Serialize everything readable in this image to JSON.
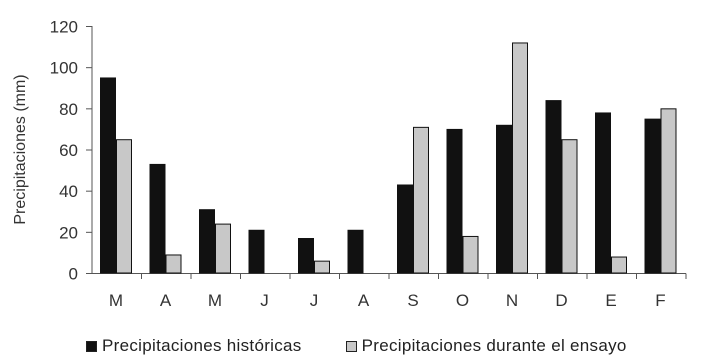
{
  "chart_data": {
    "type": "bar",
    "title": "",
    "xlabel": "",
    "ylabel": "Precipitaciones (mm)",
    "ylim": [
      0,
      120
    ],
    "yticks": [
      "0",
      "20",
      "40",
      "60",
      "80",
      "100",
      "120"
    ],
    "grid": false,
    "legend_position": "bottom",
    "categories": [
      "M",
      "A",
      "M",
      "J",
      "J",
      "A",
      "S",
      "O",
      "N",
      "D",
      "E",
      "F"
    ],
    "series": [
      {
        "name": "Precipitaciones históricas",
        "color": "#111111",
        "values": [
          95,
          53,
          31,
          21,
          17,
          21,
          43,
          70,
          72,
          84,
          78,
          75
        ]
      },
      {
        "name": "Precipitaciones durante el ensayo",
        "color": "#c8c8c8",
        "values": [
          65,
          9,
          24,
          0,
          6,
          0,
          71,
          18,
          112,
          65,
          8,
          80
        ]
      }
    ]
  }
}
